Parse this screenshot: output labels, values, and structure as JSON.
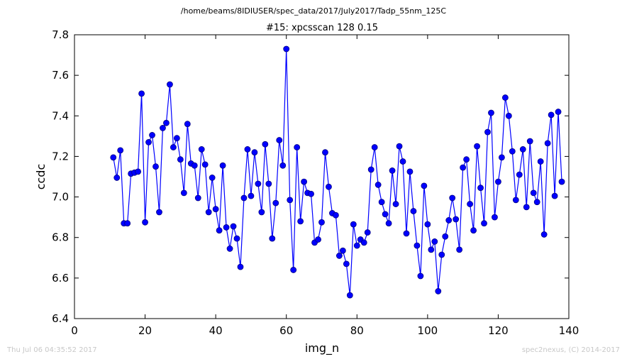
{
  "chart_data": {
    "type": "line",
    "suptitle": "/home/beams/8IDIUSER/spec_data/2017/July2017/Tadp_55nm_125C",
    "title": "#15: xpcsscan 128 0.15",
    "xlabel": "img_n",
    "ylabel": "ccdc",
    "xlim": [
      0,
      140
    ],
    "ylim": [
      6.4,
      7.8
    ],
    "xticks": [
      0,
      20,
      40,
      60,
      80,
      100,
      120,
      140
    ],
    "yticks": [
      6.4,
      6.6,
      6.8,
      7.0,
      7.2,
      7.4,
      7.6,
      7.8
    ],
    "xtick_labels": [
      "0",
      "20",
      "40",
      "60",
      "80",
      "100",
      "120",
      "140"
    ],
    "ytick_labels": [
      "6.4",
      "6.6",
      "6.8",
      "7.0",
      "7.2",
      "7.4",
      "7.6",
      "7.8"
    ],
    "grid": false,
    "marker": "circle",
    "line_color": "#0000ff",
    "marker_edge_color": "#000080",
    "series": [
      {
        "x": [
          11,
          12,
          13,
          14,
          15,
          16,
          17,
          18,
          19,
          20,
          21,
          22,
          23,
          24,
          25,
          26,
          27,
          28,
          29,
          30,
          31,
          32,
          33,
          34,
          35,
          36,
          37,
          38,
          39,
          40,
          41,
          42,
          43,
          44,
          45,
          46,
          47,
          48,
          49,
          50,
          51,
          52,
          53,
          54,
          55,
          56,
          57,
          58,
          59,
          60,
          61,
          62,
          63,
          64,
          65,
          66,
          67,
          68,
          69,
          70,
          71,
          72,
          73,
          74,
          75,
          76,
          77,
          78,
          79,
          80,
          81,
          82,
          83,
          84,
          85,
          86,
          87,
          88,
          89,
          90,
          91,
          92,
          93,
          94,
          95,
          96,
          97,
          98,
          99,
          100,
          101,
          102,
          103,
          104,
          105,
          106,
          107,
          108,
          109,
          110,
          111,
          112,
          113,
          114,
          115,
          116,
          117,
          118,
          119,
          120,
          121,
          122,
          123,
          124,
          125,
          126,
          127,
          128,
          129,
          130,
          131,
          132,
          133,
          134,
          135,
          136,
          137,
          138
        ],
        "values": [
          7.195,
          7.095,
          7.23,
          6.87,
          6.87,
          7.115,
          7.12,
          7.125,
          7.51,
          6.875,
          7.27,
          7.305,
          7.15,
          6.925,
          7.34,
          7.365,
          7.555,
          7.245,
          7.29,
          7.185,
          7.02,
          7.36,
          7.165,
          7.155,
          6.995,
          7.235,
          7.16,
          6.925,
          7.095,
          6.94,
          6.835,
          7.155,
          6.85,
          6.745,
          6.855,
          6.795,
          6.655,
          6.995,
          7.235,
          7.005,
          7.22,
          7.065,
          6.925,
          7.26,
          7.065,
          6.795,
          6.97,
          7.28,
          7.155,
          7.73,
          6.985,
          6.64,
          7.245,
          6.88,
          7.075,
          7.02,
          7.015,
          6.775,
          6.79,
          6.875,
          7.22,
          7.05,
          6.92,
          6.91,
          6.71,
          6.735,
          6.67,
          6.515,
          6.865,
          6.76,
          6.79,
          6.775,
          6.825,
          7.135,
          7.245,
          7.06,
          6.975,
          6.915,
          6.87,
          7.13,
          6.965,
          7.25,
          7.175,
          6.82,
          7.125,
          6.93,
          6.76,
          6.61,
          7.055,
          6.865,
          6.74,
          6.78,
          6.535,
          6.715,
          6.805,
          6.885,
          6.995,
          6.89,
          6.74,
          7.145,
          7.185,
          6.965,
          6.835,
          7.25,
          7.045,
          6.87,
          7.32,
          7.415,
          6.9,
          7.075,
          7.195,
          7.49,
          7.4,
          7.225,
          6.985,
          7.11,
          7.235,
          6.95,
          7.275,
          7.02,
          6.975,
          7.175,
          6.815,
          7.265,
          7.405,
          7.005,
          7.42,
          7.075
        ]
      }
    ]
  },
  "footer": {
    "timestamp": "Thu Jul 06 04:35:52 2017",
    "credit": "spec2nexus, (C) 2014-2017"
  }
}
